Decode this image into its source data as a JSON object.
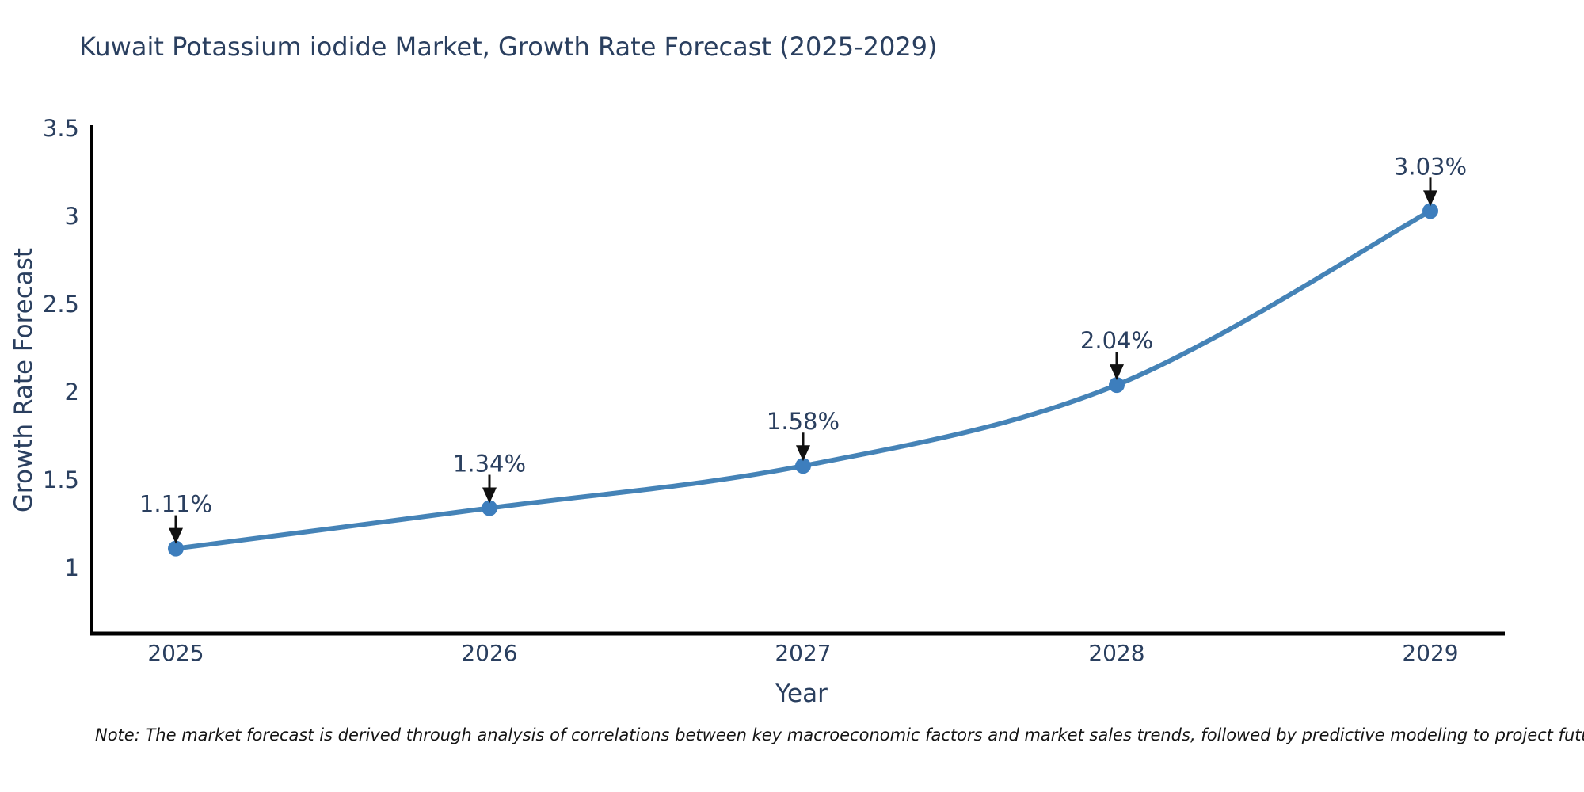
{
  "title": "Kuwait Potassium iodide Market, Growth Rate Forecast (2025-2029)",
  "note": "Note: The market forecast is derived through analysis of correlations between key macroeconomic factors and market sales trends, followed by predictive modeling to project future sales",
  "chart_data": {
    "type": "line",
    "title": "Kuwait Potassium iodide Market, Growth Rate Forecast (2025-2029)",
    "xlabel": "Year",
    "ylabel": "Growth Rate Forecast",
    "categories": [
      "2025",
      "2026",
      "2027",
      "2028",
      "2029"
    ],
    "values": [
      1.11,
      1.34,
      1.58,
      2.04,
      3.03
    ],
    "data_labels": [
      "1.11%",
      "1.34%",
      "1.58%",
      "2.04%",
      "3.03%"
    ],
    "ytick_values": [
      1,
      1.5,
      2,
      2.5,
      3,
      3.5
    ],
    "ytick_labels": [
      "1",
      "1.5",
      "2",
      "2.5",
      "3",
      "3.5"
    ],
    "ylim": [
      0.62,
      3.52
    ],
    "grid": false,
    "legend": "none",
    "colors": {
      "line": "#4583b7",
      "marker": "#3d7ebd",
      "axis": "#000000",
      "tick_text": "#2a3f5f",
      "annotation_text": "#2a3f5f",
      "annotation_arrow": "#111111",
      "title_text": "#2a3f5f",
      "note_text": "#141414",
      "background": "#ffffff"
    }
  }
}
